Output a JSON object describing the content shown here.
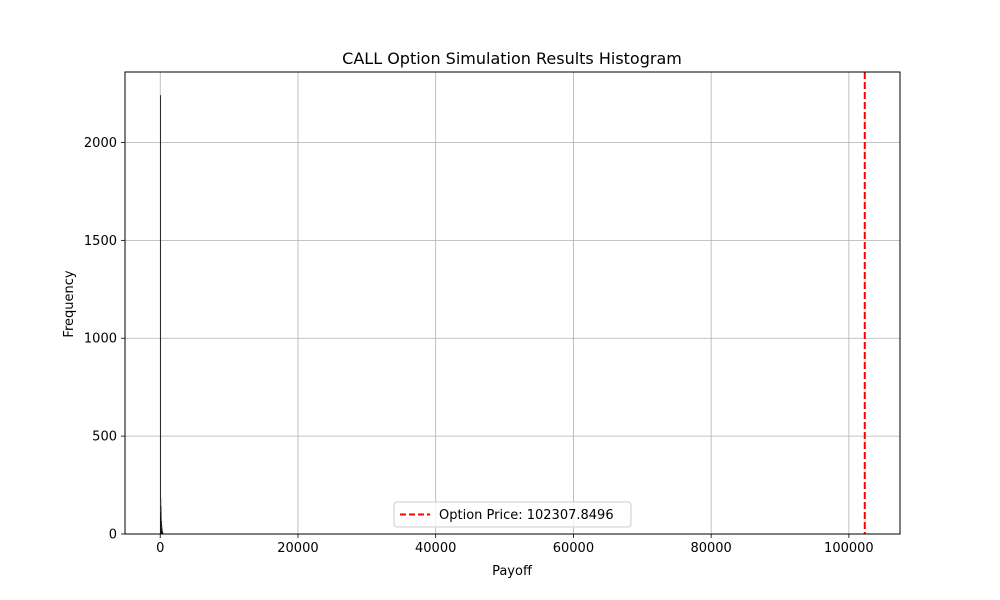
{
  "chart_data": {
    "type": "bar",
    "title": "CALL Option Simulation Results Histogram",
    "xlabel": "Payoff",
    "ylabel": "Frequency",
    "xlim": [
      -5115,
      107423
    ],
    "ylim": [
      0,
      2360
    ],
    "xticks": [
      0,
      20000,
      40000,
      60000,
      80000,
      100000
    ],
    "yticks": [
      0,
      500,
      1000,
      1500,
      2000
    ],
    "grid": true,
    "bar_color": "#c0c0c0",
    "edge_color": "#000000",
    "bin_width": 25,
    "bins": [
      {
        "x": 0,
        "count": 2240
      },
      {
        "x": 25,
        "count": 180
      },
      {
        "x": 50,
        "count": 140
      },
      {
        "x": 75,
        "count": 110
      },
      {
        "x": 100,
        "count": 85
      },
      {
        "x": 125,
        "count": 65
      },
      {
        "x": 150,
        "count": 50
      },
      {
        "x": 175,
        "count": 38
      },
      {
        "x": 200,
        "count": 28
      },
      {
        "x": 225,
        "count": 20
      },
      {
        "x": 250,
        "count": 14
      },
      {
        "x": 275,
        "count": 10
      },
      {
        "x": 300,
        "count": 7
      },
      {
        "x": 325,
        "count": 5
      },
      {
        "x": 350,
        "count": 3
      },
      {
        "x": 375,
        "count": 2
      },
      {
        "x": 400,
        "count": 1
      }
    ],
    "reference_line": {
      "x": 102307.8496,
      "color": "#ff0000",
      "label": "Option Price: 102307.8496"
    },
    "legend": {
      "placement": "lower-center",
      "entries": [
        "Option Price: 102307.8496"
      ]
    }
  }
}
